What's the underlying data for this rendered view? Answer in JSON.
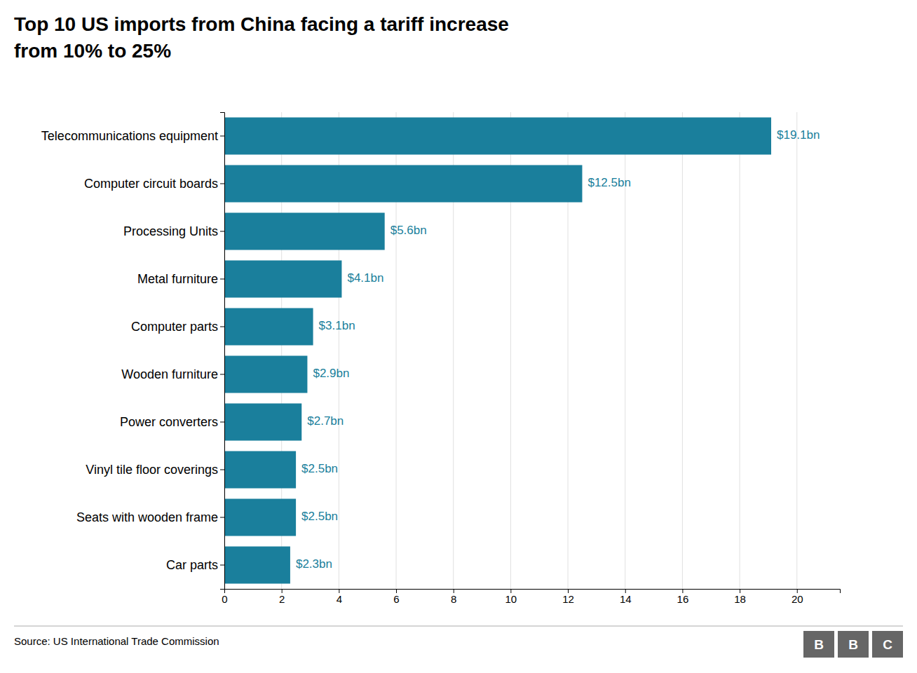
{
  "chart_data": {
    "type": "bar",
    "orientation": "horizontal",
    "title": "Top 10 US imports from China facing a tariff increase",
    "subtitle": "from 10% to 25%",
    "categories": [
      "Telecommunications equipment",
      "Computer circuit boards",
      "Processing Units",
      "Metal furniture",
      "Computer parts",
      "Wooden furniture",
      "Power converters",
      "Vinyl tile floor coverings",
      "Seats with wooden frame",
      "Car parts"
    ],
    "values": [
      19.1,
      12.5,
      5.6,
      4.1,
      3.1,
      2.9,
      2.7,
      2.5,
      2.5,
      2.3
    ],
    "value_labels": [
      "$19.1bn",
      "$12.5bn",
      "$5.6bn",
      "$4.1bn",
      "$3.1bn",
      "$2.9bn",
      "$2.7bn",
      "$2.5bn",
      "$2.5bn",
      "$2.3bn"
    ],
    "data_labels": true,
    "color": "#1a7f9c",
    "xlim": [
      0,
      21.5
    ],
    "xticks": [
      0,
      2,
      4,
      6,
      8,
      10,
      12,
      14,
      16,
      18,
      20
    ],
    "grid": true,
    "annotations": [
      "Source: US International Trade Commission",
      "B",
      "B",
      "C"
    ]
  }
}
